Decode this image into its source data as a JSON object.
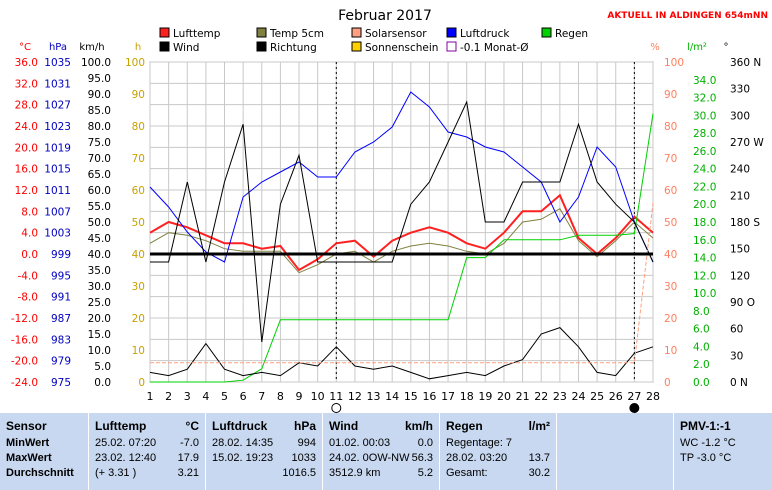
{
  "chart_data": {
    "type": "line",
    "title": "Februar 2017",
    "subtitle": "AKTUELL IN ALDINGEN 654mNN",
    "x": [
      1,
      2,
      3,
      4,
      5,
      6,
      7,
      8,
      9,
      10,
      11,
      12,
      13,
      14,
      15,
      16,
      17,
      18,
      19,
      20,
      21,
      22,
      23,
      24,
      25,
      26,
      27,
      28
    ],
    "x_tick_labels": [
      "1",
      "2",
      "3",
      "4",
      "5",
      "6",
      "7",
      "8",
      "9",
      "10",
      "11",
      "12",
      "13",
      "14",
      "15",
      "16",
      "17",
      "18",
      "19",
      "20",
      "21",
      "22",
      "23",
      "24",
      "25",
      "26",
      "27",
      "28"
    ],
    "axes": {
      "temp": {
        "unit": "°C",
        "range": [
          -24,
          36
        ],
        "ticks": [
          "36.0",
          "32.0",
          "28.0",
          "24.0",
          "20.0",
          "16.0",
          "12.0",
          "8.0",
          "4.0",
          "0.0",
          "-4.0",
          "-8.0",
          "-12.0",
          "-16.0",
          "-20.0",
          "-24.0"
        ]
      },
      "pressure": {
        "unit": "hPa",
        "range": [
          975,
          1039
        ],
        "ticks": [
          "1035",
          "1031",
          "1027",
          "1023",
          "1019",
          "1015",
          "1011",
          "1007",
          "1003",
          "999",
          "995",
          "991",
          "987",
          "983",
          "979",
          "975"
        ]
      },
      "wind": {
        "unit": "km/h",
        "range": [
          0,
          100
        ],
        "ticks": [
          "100.0",
          "95.0",
          "90.0",
          "85.0",
          "80.0",
          "75.0",
          "70.0",
          "65.0",
          "60.0",
          "55.0",
          "50.0",
          "45.0",
          "40.0",
          "35.0",
          "30.0",
          "25.0",
          "20.0",
          "15.0",
          "10.0",
          "5.0",
          "0.0"
        ]
      },
      "sun": {
        "unit": "h",
        "range": [
          0,
          100
        ],
        "ticks": [
          "100",
          "90",
          "80",
          "70",
          "60",
          "50",
          "40",
          "30",
          "20",
          "10",
          "0"
        ]
      },
      "humidity": {
        "unit": "%",
        "range": [
          0,
          100
        ],
        "ticks": [
          "100",
          "90",
          "80",
          "70",
          "60",
          "50",
          "40",
          "30",
          "20",
          "10",
          "0"
        ]
      },
      "rain": {
        "unit": "l/m²",
        "range": [
          0,
          36
        ],
        "ticks": [
          "34.0",
          "32.0",
          "30.0",
          "28.0",
          "26.0",
          "24.0",
          "22.0",
          "20.0",
          "18.0",
          "16.0",
          "14.0",
          "12.0",
          "10.0",
          "8.0",
          "6.0",
          "4.0",
          "2.0",
          "0.0"
        ]
      },
      "direction": {
        "unit": "°",
        "range": [
          0,
          360
        ],
        "ticks": [
          "360 N",
          "330",
          "300",
          "270 W",
          "240",
          "210",
          "180 S",
          "150",
          "120",
          "90 O",
          "60",
          "30",
          "0 N"
        ]
      }
    },
    "legend": [
      {
        "name": "Lufttemp",
        "color": "#ff2020"
      },
      {
        "name": "Temp 5cm",
        "color": "#808040"
      },
      {
        "name": "Solarsensor",
        "color": "#ffa080"
      },
      {
        "name": "Luftdruck",
        "color": "#0000ff"
      },
      {
        "name": "Regen",
        "color": "#00d000"
      },
      {
        "name": "Wind",
        "color": "#000000"
      },
      {
        "name": "Richtung",
        "color": "#000000"
      },
      {
        "name": "Sonnenschein",
        "color": "#ffd000"
      },
      {
        "name": "-0.1 Monat-Ø",
        "color": "#8000a0"
      }
    ],
    "series": [
      {
        "name": "Lufttemp",
        "axis": "temp",
        "color": "#ff2020",
        "values": [
          4,
          6,
          5,
          3.5,
          2,
          2,
          1,
          1.5,
          -3,
          -1,
          2,
          2.5,
          -0.5,
          2.5,
          4,
          5,
          4,
          2,
          1,
          4,
          8,
          8,
          11,
          3,
          0,
          3,
          7,
          4
        ]
      },
      {
        "name": "Temp 5cm",
        "axis": "temp",
        "color": "#808040",
        "values": [
          2,
          4,
          3.5,
          2.5,
          1,
          0.5,
          0.5,
          0.5,
          -3.5,
          -2,
          0,
          0.5,
          -1.5,
          0.5,
          1.5,
          2,
          1.5,
          0.5,
          0,
          2,
          6,
          6.5,
          8.5,
          2.5,
          -0.5,
          2.5,
          6,
          3
        ]
      },
      {
        "name": "Luftdruck",
        "axis": "pressure",
        "color": "#0000ff",
        "values": [
          1014,
          1010,
          1005,
          1001,
          999,
          1012,
          1015,
          1017,
          1019,
          1016,
          1016,
          1021,
          1023,
          1026,
          1033,
          1030,
          1025,
          1024,
          1022,
          1021,
          1018,
          1015,
          1007,
          1012,
          1022,
          1018,
          1007,
          999
        ]
      },
      {
        "name": "Regen",
        "axis": "rain",
        "color": "#00d000",
        "values": [
          0,
          0,
          0,
          0,
          0,
          0.2,
          1.5,
          7,
          7,
          7,
          7,
          7,
          7,
          7,
          7,
          7,
          7,
          14,
          14,
          16,
          16,
          16,
          16,
          16.5,
          16.5,
          16.5,
          16.7,
          30.2
        ]
      },
      {
        "name": "Wind",
        "axis": "wind",
        "color": "#000000",
        "values": [
          3,
          2,
          4,
          12,
          4,
          2,
          3,
          2,
          6,
          5,
          11,
          5,
          4,
          5,
          3,
          1,
          2,
          3,
          2,
          5,
          7,
          15,
          17,
          11,
          3,
          2,
          9,
          11
        ]
      },
      {
        "name": "Richtung",
        "axis": "direction",
        "color": "#000000",
        "values": [
          135,
          135,
          225,
          135,
          225,
          290,
          45,
          200,
          255,
          135,
          135,
          135,
          135,
          135,
          200,
          225,
          270,
          315,
          180,
          180,
          225,
          225,
          225,
          290,
          225,
          200,
          180,
          135
        ]
      },
      {
        "name": "Solarsensor",
        "axis": "humidity",
        "color": "#ffa080",
        "values": [
          6,
          6,
          6,
          6,
          6,
          6,
          6,
          6,
          6,
          6,
          6,
          6,
          6,
          6,
          6,
          6,
          6,
          6,
          6,
          6,
          6,
          6,
          6,
          6,
          6,
          6,
          6,
          56
        ]
      },
      {
        "name": "-0.1 Monat-Ø",
        "axis": "temp",
        "color": "#000000",
        "values": [
          0,
          0,
          0,
          0,
          0,
          0,
          0,
          0,
          0,
          0,
          0,
          0,
          0,
          0,
          0,
          0,
          0,
          0,
          0,
          0,
          0,
          0,
          0,
          0,
          0,
          0,
          0,
          0
        ]
      }
    ],
    "markers": [
      {
        "x": 11,
        "symbol": "full-moon"
      },
      {
        "x": 27,
        "symbol": "new-moon"
      }
    ],
    "grid": true
  },
  "panels": {
    "sensor": {
      "title": "Sensor",
      "rows": [
        "MinWert",
        "MaxWert",
        "Durchschnitt"
      ]
    },
    "lufttemp": {
      "title": "Lufttemp",
      "unit": "°C",
      "rows": [
        [
          "25.02.  07:20",
          "-7.0"
        ],
        [
          "23.02.  12:40",
          "17.9"
        ],
        [
          "(+ 3.31 )",
          "3.21"
        ]
      ]
    },
    "luftdruck": {
      "title": "Luftdruck",
      "unit": "hPa",
      "rows": [
        [
          "28.02.  14:35",
          "994"
        ],
        [
          "15.02.  19:23",
          "1033"
        ],
        [
          "",
          "1016.5"
        ]
      ]
    },
    "wind": {
      "title": "Wind",
      "unit": "km/h",
      "rows": [
        [
          "01.02.  00:03",
          "0.0"
        ],
        [
          "24.02.  0OW-NW",
          "56.3"
        ],
        [
          "3512.9 km",
          "5.2"
        ]
      ]
    },
    "regen": {
      "title": "Regen",
      "unit": "l/m²",
      "rows": [
        [
          "Regentage: 7",
          ""
        ],
        [
          "28.02.  03:20",
          "13.7"
        ],
        [
          "Gesamt:",
          "30.2"
        ]
      ]
    },
    "pmv": {
      "title": "PMV-1:-1",
      "rows": [
        "WC -1.2 °C",
        "TP -3.0 °C"
      ]
    }
  }
}
